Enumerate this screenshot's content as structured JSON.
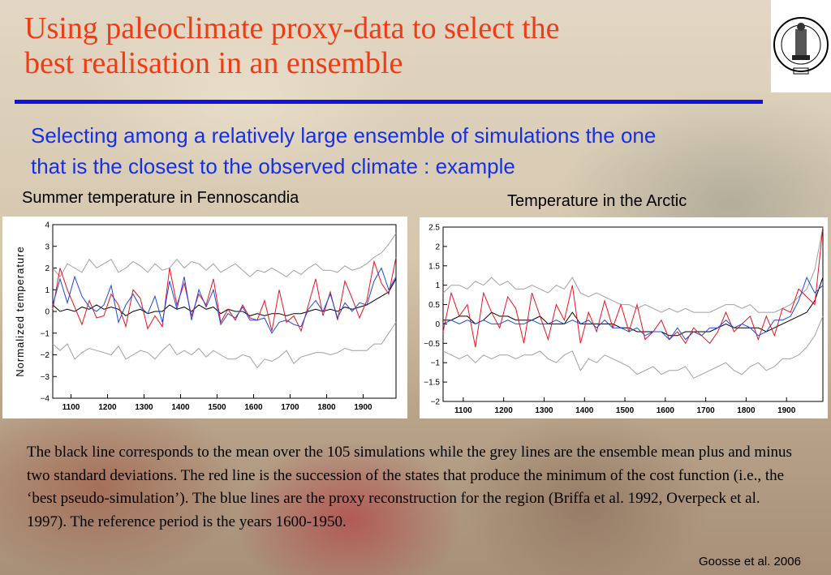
{
  "slide": {
    "title_line1": "Using paleoclimate proxy-data to select the",
    "title_line2": "best realisation in an ensemble",
    "subtitle_line1": "Selecting among a relatively large ensemble of simulations the one",
    "subtitle_line2": "that is the closest to the observed climate : example",
    "caption": "The black line corresponds to the mean over the 105 simulations while the grey lines are the ensemble mean plus and minus two standard deviations. The red line is the succession of the states that produce the minimum of the cost function (i.e., the ‘best pseudo-simulation’). The blue lines are the proxy reconstruction for the region (Briffa et al. 1992, Overpeck et al. 1997). The reference period is the years 1600-1950.",
    "credit": "Goosse et al. 2006",
    "title_color": "#f03c14",
    "subtitle_color": "#1430e8",
    "rule_color": "#0a14e6"
  },
  "chart_data": [
    {
      "type": "line",
      "title": "Summer temperature in Fennoscandia",
      "ylabel": "Normalized temperature",
      "xlabel": "",
      "xlim": [
        1050,
        1990
      ],
      "ylim": [
        -4,
        4
      ],
      "xticks": [
        1100,
        1200,
        1300,
        1400,
        1500,
        1600,
        1700,
        1800,
        1900
      ],
      "yticks": [
        -4,
        -3,
        -2,
        -1,
        0,
        1,
        2,
        3,
        4
      ],
      "ytick_labels": [
        "−4",
        "−3",
        "−2",
        "−1",
        "0",
        "1",
        "2",
        "3",
        "4"
      ],
      "x": [
        1050,
        1070,
        1090,
        1110,
        1130,
        1150,
        1170,
        1190,
        1210,
        1230,
        1250,
        1270,
        1290,
        1310,
        1330,
        1350,
        1370,
        1390,
        1410,
        1430,
        1450,
        1470,
        1490,
        1510,
        1530,
        1550,
        1570,
        1590,
        1610,
        1630,
        1650,
        1670,
        1690,
        1710,
        1730,
        1750,
        1770,
        1790,
        1810,
        1830,
        1850,
        1870,
        1890,
        1910,
        1930,
        1950,
        1970,
        1990
      ],
      "series": [
        {
          "color": "#000000",
          "values": [
            0.3,
            0.0,
            0.1,
            0.0,
            0.2,
            0.1,
            0.3,
            0.1,
            0.2,
            0.1,
            -0.2,
            0.0,
            0.1,
            -0.1,
            0.0,
            0.0,
            0.3,
            0.1,
            0.2,
            0.0,
            0.3,
            0.1,
            0.2,
            -0.1,
            0.1,
            0.0,
            0.0,
            -0.2,
            -0.1,
            -0.2,
            -0.1,
            -0.1,
            -0.2,
            -0.1,
            -0.1,
            0.0,
            0.1,
            0.0,
            0.1,
            0.0,
            0.2,
            0.1,
            0.2,
            0.3,
            0.5,
            0.7,
            0.9,
            1.5
          ]
        },
        {
          "color": "#a0a0a0",
          "values": [
            2.0,
            1.6,
            2.2,
            2.0,
            1.8,
            2.4,
            2.0,
            2.2,
            2.4,
            1.8,
            2.0,
            2.3,
            2.1,
            1.8,
            2.2,
            1.9,
            2.0,
            2.4,
            2.0,
            2.3,
            2.2,
            1.9,
            2.2,
            1.8,
            2.0,
            2.2,
            1.9,
            1.6,
            1.9,
            1.8,
            2.0,
            1.8,
            1.6,
            1.9,
            1.7,
            2.0,
            2.2,
            1.9,
            1.9,
            1.8,
            2.1,
            1.9,
            2.0,
            2.2,
            2.5,
            2.7,
            3.1,
            3.6
          ]
        },
        {
          "color": "#a0a0a0",
          "values": [
            -1.5,
            -1.8,
            -1.5,
            -2.2,
            -1.9,
            -1.7,
            -1.8,
            -1.9,
            -2.0,
            -1.6,
            -2.2,
            -2.0,
            -1.8,
            -1.9,
            -2.2,
            -1.8,
            -1.5,
            -2.0,
            -1.8,
            -2.0,
            -1.7,
            -2.1,
            -1.8,
            -2.0,
            -2.2,
            -2.2,
            -2.0,
            -2.1,
            -2.6,
            -2.2,
            -2.3,
            -2.1,
            -1.8,
            -2.4,
            -2.1,
            -2.0,
            -1.9,
            -1.9,
            -2.0,
            -1.9,
            -1.7,
            -1.8,
            -1.8,
            -1.8,
            -1.5,
            -1.5,
            -1.0,
            -0.5
          ]
        },
        {
          "color": "#e8141e",
          "values": [
            0.1,
            2.0,
            1.0,
            0.2,
            -0.6,
            0.5,
            -0.3,
            -0.2,
            0.8,
            0.3,
            -0.7,
            1.0,
            0.6,
            -0.8,
            -0.2,
            -0.7,
            2.0,
            0.3,
            1.3,
            -0.2,
            0.8,
            0.3,
            1.5,
            -0.5,
            0.1,
            -0.4,
            0.3,
            -0.3,
            -0.4,
            0.5,
            -0.9,
            1.0,
            -0.5,
            -0.2,
            -0.9,
            0.3,
            1.5,
            -0.2,
            0.9,
            -0.4,
            1.4,
            0.6,
            -0.3,
            0.5,
            2.3,
            1.3,
            0.8,
            2.5
          ]
        },
        {
          "color": "#1e46e6",
          "values": [
            0.3,
            1.5,
            0.4,
            1.6,
            0.7,
            0.2,
            0.0,
            0.3,
            1.2,
            -0.5,
            0.3,
            0.8,
            0.2,
            -0.1,
            0.7,
            -0.5,
            1.4,
            0.1,
            1.6,
            -0.4,
            1.0,
            0.2,
            1.0,
            -0.6,
            -0.1,
            -0.3,
            0.2,
            -0.4,
            -0.4,
            -0.3,
            -1.0,
            -0.5,
            -0.4,
            -0.6,
            -0.7,
            0.1,
            0.5,
            0.0,
            0.8,
            -0.3,
            0.4,
            0.0,
            0.4,
            0.3,
            1.4,
            2.0,
            1.0,
            1.6
          ]
        }
      ]
    },
    {
      "type": "line",
      "title": "Temperature in the Arctic",
      "xlabel": "",
      "ylabel": "",
      "xlim": [
        1050,
        1990
      ],
      "ylim": [
        -2,
        2.5
      ],
      "xticks": [
        1100,
        1200,
        1300,
        1400,
        1500,
        1600,
        1700,
        1800,
        1900
      ],
      "yticks": [
        -2,
        -1.5,
        -1,
        -0.5,
        0,
        0.5,
        1,
        1.5,
        2,
        2.5
      ],
      "ytick_labels": [
        "−2",
        "−1.5",
        "−1",
        "−0.5",
        "0",
        "0.5",
        "1",
        "1.5",
        "2",
        "2.5"
      ],
      "x": [
        1050,
        1070,
        1090,
        1110,
        1130,
        1150,
        1170,
        1190,
        1210,
        1230,
        1250,
        1270,
        1290,
        1310,
        1330,
        1350,
        1370,
        1390,
        1410,
        1430,
        1450,
        1470,
        1490,
        1510,
        1530,
        1550,
        1570,
        1590,
        1610,
        1630,
        1650,
        1670,
        1690,
        1710,
        1730,
        1750,
        1770,
        1790,
        1810,
        1830,
        1850,
        1870,
        1890,
        1910,
        1930,
        1950,
        1970,
        1990
      ],
      "series": [
        {
          "color": "#000000",
          "values": [
            0.1,
            0.1,
            0.2,
            0.2,
            0.0,
            0.1,
            0.3,
            0.2,
            0.2,
            0.1,
            0.1,
            0.1,
            0.2,
            0.0,
            0.0,
            0.0,
            0.3,
            0.0,
            0.0,
            0.0,
            0.0,
            0.0,
            -0.1,
            -0.1,
            -0.2,
            -0.2,
            -0.2,
            -0.2,
            -0.3,
            -0.3,
            -0.2,
            -0.2,
            -0.2,
            -0.2,
            -0.1,
            0.0,
            -0.1,
            -0.1,
            -0.1,
            -0.1,
            -0.2,
            -0.1,
            0.0,
            0.1,
            0.2,
            0.3,
            0.6,
            1.2
          ]
        },
        {
          "color": "#a0a0a0",
          "values": [
            0.8,
            1.0,
            1.0,
            0.9,
            1.1,
            1.0,
            1.2,
            1.0,
            1.1,
            0.9,
            0.9,
            1.0,
            0.9,
            0.8,
            1.0,
            0.9,
            1.2,
            0.8,
            0.7,
            0.8,
            0.7,
            0.6,
            0.5,
            0.5,
            0.4,
            0.5,
            0.4,
            0.3,
            0.4,
            0.3,
            0.4,
            0.3,
            0.3,
            0.3,
            0.4,
            0.5,
            0.5,
            0.4,
            0.5,
            0.3,
            0.3,
            0.3,
            0.4,
            0.5,
            0.7,
            0.9,
            1.4,
            2.5
          ]
        },
        {
          "color": "#a0a0a0",
          "values": [
            -0.7,
            -0.8,
            -0.9,
            -0.8,
            -1.0,
            -0.8,
            -0.9,
            -0.8,
            -0.8,
            -0.9,
            -0.8,
            -0.8,
            -0.7,
            -0.9,
            -1.0,
            -0.8,
            -0.7,
            -1.2,
            -0.9,
            -1.0,
            -0.8,
            -0.9,
            -1.0,
            -1.1,
            -1.3,
            -1.2,
            -1.1,
            -1.3,
            -1.2,
            -1.2,
            -1.1,
            -1.4,
            -1.3,
            -1.2,
            -1.1,
            -1.0,
            -1.2,
            -1.3,
            -1.1,
            -1.0,
            -1.2,
            -1.1,
            -0.9,
            -0.9,
            -0.8,
            -0.6,
            -0.3,
            0.2
          ]
        },
        {
          "color": "#e8141e",
          "values": [
            -0.2,
            0.8,
            0.2,
            0.5,
            -0.6,
            0.8,
            0.3,
            -0.1,
            0.7,
            0.4,
            -0.5,
            0.8,
            0.2,
            -0.4,
            0.5,
            0.1,
            1.0,
            -0.5,
            0.3,
            -0.2,
            0.6,
            -0.1,
            0.5,
            -0.2,
            0.5,
            -0.4,
            -0.2,
            0.1,
            -0.4,
            -0.2,
            -0.5,
            -0.1,
            -0.3,
            -0.5,
            -0.2,
            0.3,
            -0.2,
            0.0,
            0.2,
            -0.4,
            0.2,
            -0.3,
            0.4,
            0.3,
            0.9,
            0.7,
            0.5,
            2.5
          ]
        },
        {
          "color": "#1e46e6",
          "values": [
            0.0,
            0.1,
            0.0,
            0.1,
            0.0,
            0.1,
            0.0,
            0.0,
            0.1,
            0.0,
            0.0,
            0.1,
            0.0,
            0.0,
            0.1,
            0.0,
            0.1,
            0.0,
            0.1,
            -0.1,
            0.1,
            -0.1,
            -0.1,
            -0.2,
            -0.1,
            -0.3,
            -0.2,
            -0.2,
            -0.4,
            -0.1,
            -0.4,
            -0.2,
            -0.3,
            -0.1,
            -0.1,
            0.1,
            -0.1,
            0.0,
            -0.1,
            -0.3,
            -0.2,
            0.1,
            0.1,
            0.2,
            0.6,
            1.2,
            0.8,
            1.0
          ]
        }
      ]
    }
  ]
}
